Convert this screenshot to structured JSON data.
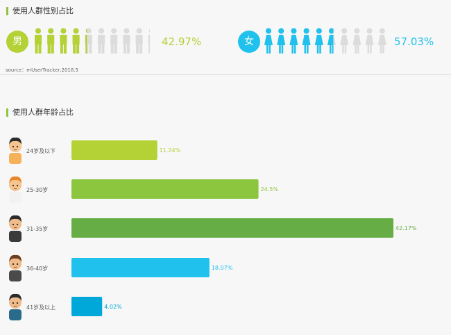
{
  "gender_section": {
    "title": "使用人群性别占比",
    "male": {
      "label": "男",
      "percent_text": "42.97%",
      "value": 42.97,
      "color": "#b4d136"
    },
    "female": {
      "label": "女",
      "percent_text": "57.03%",
      "value": 57.03,
      "color": "#20c1ec"
    },
    "inactive_color": "#dcdcdc",
    "source": "source：mUserTracker,2018.5"
  },
  "age_section": {
    "title": "使用人群年龄占比"
  },
  "chart_data": {
    "type": "bar",
    "orientation": "horizontal",
    "title": "使用人群年龄占比",
    "categories": [
      "24岁及以下",
      "25-30岁",
      "31-35岁",
      "36-40岁",
      "41岁及以上"
    ],
    "values": [
      11.24,
      24.5,
      42.17,
      18.07,
      4.02
    ],
    "value_labels": [
      "11.24%",
      "24.5%",
      "42.17%",
      "18.07%",
      "4.02%"
    ],
    "colors": [
      "#b4d136",
      "#8cc63f",
      "#66ad45",
      "#20c1ec",
      "#00a8d9"
    ],
    "xlim": [
      0,
      42.17
    ],
    "grid": false
  }
}
